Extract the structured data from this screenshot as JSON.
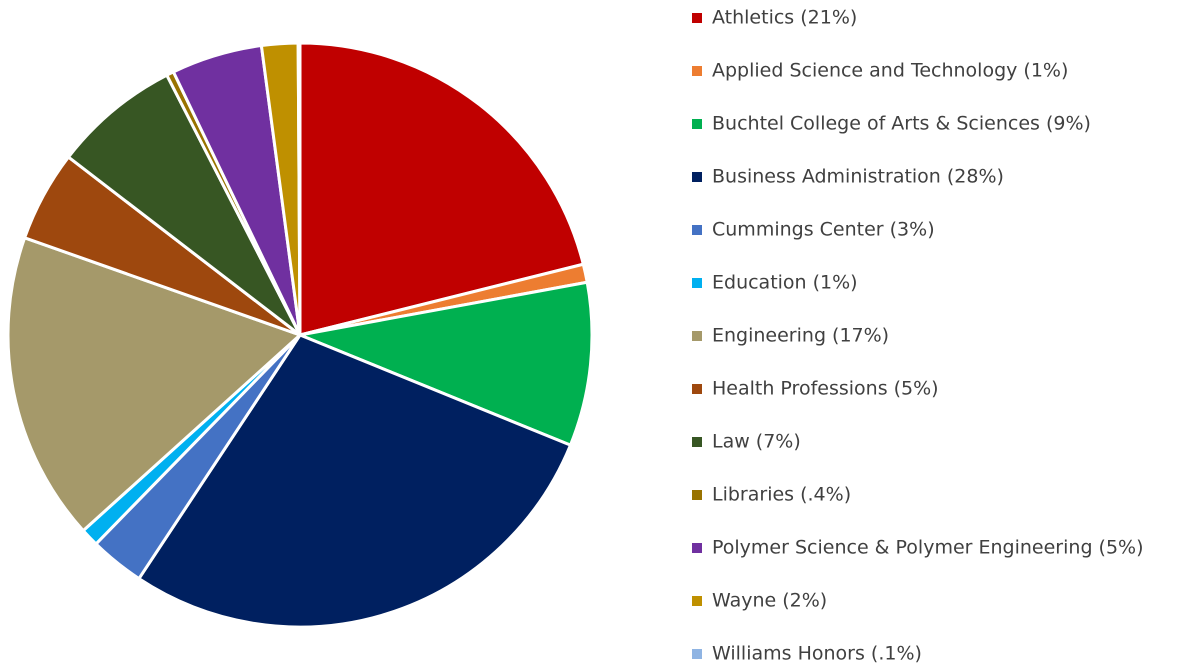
{
  "chart_data": {
    "type": "pie",
    "categories": [
      "Athletics (21%)",
      "Applied Science and Technology (1%)",
      "Buchtel College of Arts & Sciences (9%)",
      "Business Administration (28%)",
      "Cummings Center (3%)",
      "Education (1%)",
      "Engineering (17%)",
      "Health Professions (5%)",
      "Law (7%)",
      "Libraries (.4%)",
      "Polymer Science & Polymer Engineering (5%)",
      "Wayne (2%)",
      "Williams Honors (.1%)"
    ],
    "values": [
      21,
      1,
      9,
      28,
      3,
      1,
      17,
      5,
      7,
      0.4,
      5,
      2,
      0.1
    ],
    "colors": [
      "#c00000",
      "#ed7d31",
      "#00b050",
      "#002060",
      "#4472c4",
      "#00b0f0",
      "#a5996a",
      "#9e480e",
      "#375623",
      "#997300",
      "#7030a0",
      "#bf9000",
      "#8fb4e3"
    ],
    "legend": "right"
  }
}
